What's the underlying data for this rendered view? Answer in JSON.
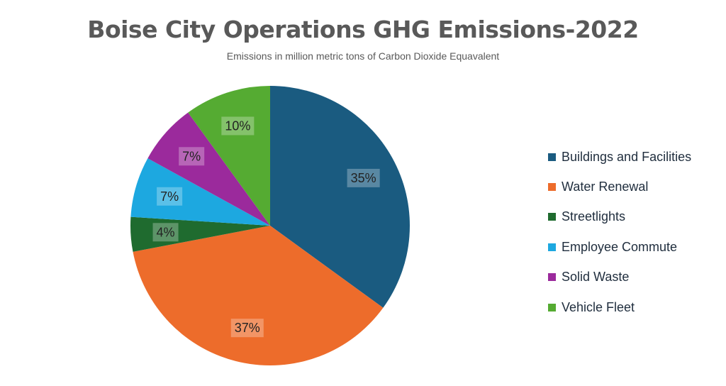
{
  "chart_data": {
    "type": "pie",
    "title": "Boise City Operations GHG Emissions-2022",
    "subtitle": "Emissions in million metric tons of Carbon Dioxide Equavalent",
    "slices": [
      {
        "name": "Buildings and Facilities",
        "value": 35,
        "label": "35%",
        "color": "#1a5b80"
      },
      {
        "name": "Water Renewal",
        "value": 37,
        "label": "37%",
        "color": "#ed6c2b"
      },
      {
        "name": "Streetlights",
        "value": 4,
        "label": "4%",
        "color": "#1f6b2f"
      },
      {
        "name": "Employee Commute",
        "value": 7,
        "label": "7%",
        "color": "#1da8e0"
      },
      {
        "name": "Solid Waste",
        "value": 7,
        "label": "7%",
        "color": "#9b2a9c"
      },
      {
        "name": "Vehicle Fleet",
        "value": 10,
        "label": "10%",
        "color": "#55ab32"
      }
    ],
    "legend_position": "right"
  }
}
